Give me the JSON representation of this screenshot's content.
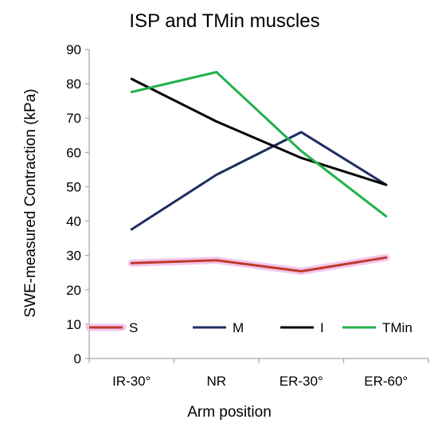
{
  "chart_data": {
    "type": "line",
    "title": "ISP and TMin muscles",
    "xlabel": "Arm position",
    "ylabel": "SWE-measured Contraction (kPa)",
    "categories": [
      "IR-30°",
      "NR",
      "ER-30°",
      "ER-60°"
    ],
    "ylim": [
      0,
      90
    ],
    "yticks": [
      0,
      10,
      20,
      30,
      40,
      50,
      60,
      70,
      80,
      90
    ],
    "grid": false,
    "legend_position": "bottom-inside",
    "series": [
      {
        "name": "S",
        "values": [
          27.8,
          28.6,
          25.4,
          29.4
        ],
        "color": "#c0392b",
        "halo": "#f0b8e8"
      },
      {
        "name": "M",
        "values": [
          37.6,
          53.5,
          65.9,
          50.6
        ],
        "color": "#1f2d63"
      },
      {
        "name": "I",
        "values": [
          81.4,
          69.0,
          58.4,
          50.6
        ],
        "color": "#000000"
      },
      {
        "name": "TMin",
        "values": [
          77.6,
          83.4,
          60.4,
          41.4
        ],
        "color": "#22b14c"
      }
    ]
  }
}
